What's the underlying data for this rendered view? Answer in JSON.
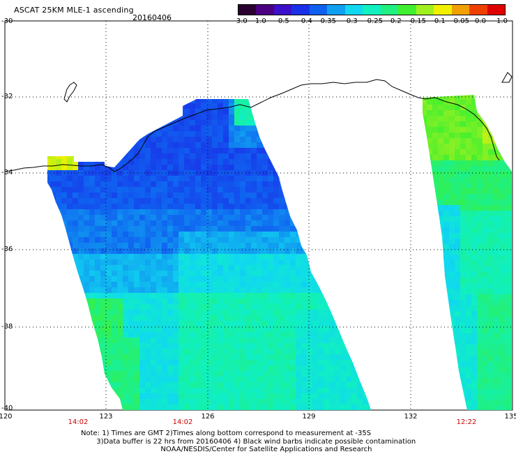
{
  "header": {
    "title": "ASCAT 25KM MLE-1 ascending",
    "date": "20160406"
  },
  "colorbar": {
    "labels": [
      "-3.0",
      "-1.0",
      "-0.5",
      "-0.4",
      "-0.35",
      "-0.3",
      "-0.25",
      "-0.2",
      "-0.15",
      "-0.1",
      "-0.05",
      "0.0",
      "1.0"
    ],
    "colors": [
      "#2a0030",
      "#4a0080",
      "#3c10c8",
      "#1a30e8",
      "#1060f0",
      "#10a0f0",
      "#10d8f0",
      "#10f0c0",
      "#20f080",
      "#40f030",
      "#a0f020",
      "#f0f000",
      "#f0a000",
      "#f04000",
      "#e00000"
    ]
  },
  "map": {
    "lat_labels": [
      "-30",
      "-32",
      "-34",
      "-36",
      "-38",
      "-40"
    ],
    "lon_labels": [
      "120",
      "123",
      "126",
      "129",
      "132",
      "135"
    ],
    "time_labels": [
      "14:02",
      "14:02",
      "12:22"
    ]
  },
  "notes": {
    "line1": "Note: 1) Times are GMT 2)Times along bottom correspond to measurement at -35S",
    "line2": "       3)Data buffer is 22 hrs from 20160406 4) Black wind barbs indicate possible contamination",
    "line3": "                                    NOAA/NESDIS/Center for Satellite Applications and Research"
  }
}
